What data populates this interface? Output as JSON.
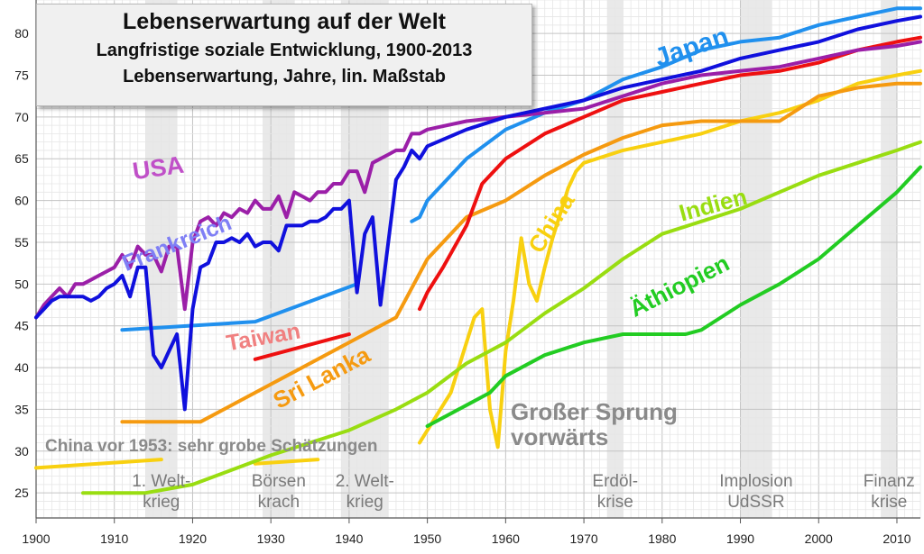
{
  "chart_data": {
    "type": "line",
    "title": "Lebenserwartung auf der Welt",
    "subtitle": "Langfristige soziale Entwicklung, 1900-2013",
    "subtitle2": "Lebenserwartung, Jahre, lin. Maßstab",
    "xlim": [
      1900,
      2013
    ],
    "ylim": [
      22,
      84
    ],
    "x_ticks": [
      1900,
      1910,
      1920,
      1930,
      1940,
      1950,
      1960,
      1970,
      1980,
      1990,
      2000,
      2010
    ],
    "x_tick_labels": [
      "1900",
      "1910",
      "1920",
      "1930",
      "1940",
      "1950",
      "1960",
      "1970",
      "1980",
      "1990",
      "2000",
      "2010"
    ],
    "y_ticks": [
      25,
      30,
      35,
      40,
      45,
      50,
      55,
      60,
      65,
      70,
      75,
      80
    ],
    "y_tick_labels": [
      "25",
      "30",
      "35",
      "40",
      "45",
      "50",
      "55",
      "60",
      "65",
      "70",
      "75",
      "80"
    ],
    "grid": true,
    "colors": {
      "usa": "#9b1fa8",
      "frankreich": "#1010dd",
      "japan": "#2090ee",
      "taiwan": "#ee1010",
      "srilanka": "#f59a10",
      "china": "#f8d010",
      "indien": "#99dd11",
      "aethiopien": "#22cc22",
      "grid": "#d8d8d8",
      "crisis": "#e3e3e3"
    },
    "crisis_bands": [
      {
        "from": 1914,
        "to": 1918,
        "label": [
          "1. Welt-",
          "krieg"
        ]
      },
      {
        "from": 1929,
        "to": 1933,
        "label": [
          "Börsen",
          "krach"
        ]
      },
      {
        "from": 1939,
        "to": 1945,
        "label": [
          "2. Welt-",
          "krieg"
        ]
      },
      {
        "from": 1973,
        "to": 1975,
        "label": [
          "Erdöl-",
          "krise"
        ]
      },
      {
        "from": 1990,
        "to": 1994,
        "label": [
          "Implosion",
          "UdSSR"
        ]
      },
      {
        "from": 2008,
        "to": 2010,
        "label": [
          "Finanz",
          "krise"
        ]
      }
    ],
    "annotations": {
      "china_pre1953": "China vor 1953: sehr grobe Schätzungen",
      "sprung": [
        "Großer Sprung",
        "vorwärts"
      ]
    },
    "series": [
      {
        "name": "USA",
        "labelColor": "#c050c8",
        "key": "usa",
        "x": [
          1900,
          1901,
          1902,
          1903,
          1904,
          1905,
          1906,
          1907,
          1908,
          1909,
          1910,
          1911,
          1912,
          1913,
          1914,
          1915,
          1916,
          1917,
          1918,
          1919,
          1920,
          1921,
          1922,
          1923,
          1924,
          1925,
          1926,
          1927,
          1928,
          1929,
          1930,
          1931,
          1932,
          1933,
          1934,
          1935,
          1936,
          1937,
          1938,
          1939,
          1940,
          1941,
          1942,
          1943,
          1944,
          1945,
          1946,
          1947,
          1948,
          1949,
          1950,
          1955,
          1960,
          1965,
          1970,
          1975,
          1980,
          1985,
          1990,
          1995,
          2000,
          2005,
          2010,
          2013
        ],
        "y": [
          46,
          47.5,
          48.5,
          49.5,
          48.5,
          50,
          50,
          50.5,
          51,
          51.5,
          52,
          53.5,
          52,
          54.5,
          53.5,
          53.5,
          51.5,
          54.5,
          54.5,
          47,
          55,
          57.5,
          58,
          57,
          58.5,
          58,
          59,
          58.5,
          60,
          59,
          59,
          60.5,
          58,
          61,
          60.5,
          60,
          61,
          61,
          62,
          62,
          63.5,
          63.5,
          61,
          64.5,
          65,
          65.5,
          66,
          66,
          68,
          68,
          68.5,
          69.5,
          70,
          70.5,
          71,
          72.5,
          74,
          75,
          75.5,
          76,
          77,
          78,
          78.5,
          79
        ]
      },
      {
        "name": "Frankreich",
        "labelColor": "#7f7ff5",
        "key": "frankreich",
        "x": [
          1900,
          1901,
          1902,
          1903,
          1904,
          1905,
          1906,
          1907,
          1908,
          1909,
          1910,
          1911,
          1912,
          1913,
          1914,
          1915,
          1916,
          1917,
          1918,
          1919,
          1920,
          1921,
          1922,
          1923,
          1924,
          1925,
          1926,
          1927,
          1928,
          1929,
          1930,
          1931,
          1932,
          1933,
          1934,
          1935,
          1936,
          1937,
          1938,
          1939,
          1940,
          1941,
          1942,
          1943,
          1944,
          1945,
          1946,
          1947,
          1948,
          1949,
          1950,
          1955,
          1960,
          1965,
          1970,
          1975,
          1980,
          1985,
          1990,
          1995,
          2000,
          2005,
          2010,
          2013
        ],
        "y": [
          46,
          47,
          48,
          48.5,
          48.5,
          48.5,
          48.5,
          48,
          48.5,
          49.5,
          50,
          51,
          48.5,
          52,
          52,
          41.5,
          40,
          42,
          44,
          35,
          47,
          52,
          52.5,
          55,
          55,
          55.5,
          55,
          56,
          54.5,
          55,
          55,
          54,
          57,
          57,
          57,
          57.5,
          57.5,
          58,
          59,
          59,
          60,
          49,
          56,
          58,
          47.5,
          55,
          62.5,
          64,
          66,
          65,
          66.5,
          68.5,
          70,
          71,
          72,
          73.5,
          74.5,
          75.5,
          77,
          78,
          79,
          80.5,
          81.5,
          82
        ]
      },
      {
        "name": "Japan",
        "labelColor": "#2090ee",
        "key": "japan",
        "x": [
          1911,
          1928,
          1941,
          null,
          1948,
          1949,
          1950,
          1951,
          1952,
          1955,
          1960,
          1965,
          1970,
          1975,
          1980,
          1985,
          1990,
          1995,
          2000,
          2005,
          2010,
          2013
        ],
        "y": [
          44.5,
          45.5,
          50,
          null,
          57.5,
          58,
          60,
          61,
          62,
          65,
          68.5,
          70.5,
          72,
          74.5,
          76,
          78,
          79,
          79.5,
          81,
          82,
          83,
          83
        ]
      },
      {
        "name": "Taiwan",
        "labelColor": "#f08080",
        "key": "taiwan",
        "x": [
          1928,
          1940,
          null,
          1949,
          1950,
          1952,
          1955,
          1957,
          1960,
          1965,
          1970,
          1975,
          1980,
          1985,
          1990,
          1995,
          2000,
          2005,
          2010,
          2013
        ],
        "y": [
          41,
          44,
          null,
          47,
          49,
          52,
          57,
          62,
          65,
          68,
          70,
          72,
          73,
          74,
          75,
          75.5,
          76.5,
          78,
          79,
          79.5
        ]
      },
      {
        "name": "Sri Lanka",
        "labelColor": "#f59a10",
        "key": "srilanka",
        "x": [
          1911,
          1921,
          1946,
          1950,
          1955,
          1960,
          1965,
          1970,
          1975,
          1980,
          1985,
          1990,
          1995,
          2000,
          2005,
          2010,
          2013
        ],
        "y": [
          33.5,
          33.5,
          46,
          53,
          58,
          60,
          63,
          65.5,
          67.5,
          69,
          69.5,
          69.5,
          69.5,
          72.5,
          73.5,
          74,
          74
        ]
      },
      {
        "name": "China",
        "labelColor": "#f8d010",
        "key": "china",
        "x": [
          1900,
          1916,
          null,
          1928,
          1936,
          null,
          1949,
          1953,
          1955,
          1956,
          1957,
          1958,
          1959,
          1960,
          1961,
          1962,
          1963,
          1964,
          1965,
          1966,
          1967,
          1968,
          1969,
          1970,
          1975,
          1980,
          1985,
          1990,
          1995,
          2000,
          2005,
          2010,
          2013
        ],
        "y": [
          28,
          29,
          null,
          28.5,
          29,
          null,
          31,
          37,
          43,
          46,
          47,
          35,
          30.5,
          42,
          48,
          55.5,
          50,
          48,
          52,
          55.5,
          58.5,
          61.5,
          63.5,
          64.5,
          66,
          67,
          68,
          69.5,
          70.5,
          72,
          74,
          75,
          75.5
        ]
      },
      {
        "name": "Indien",
        "labelColor": "#99dd11",
        "key": "indien",
        "x": [
          1906,
          1914,
          1920,
          1930,
          1940,
          1946,
          1950,
          1955,
          1960,
          1965,
          1970,
          1975,
          1980,
          1985,
          1990,
          1995,
          2000,
          2005,
          2010,
          2013
        ],
        "y": [
          25,
          25,
          26,
          29.5,
          32.5,
          35,
          37,
          40.5,
          43,
          46.5,
          49.5,
          53,
          56,
          57.5,
          59,
          61,
          63,
          64.5,
          66,
          67
        ]
      },
      {
        "name": "Äthiopien",
        "labelColor": "#22cc22",
        "key": "aethiopien",
        "x": [
          1950,
          1955,
          1958,
          1960,
          1965,
          1970,
          1975,
          1980,
          1983,
          1985,
          1990,
          1995,
          2000,
          2005,
          2010,
          2013
        ],
        "y": [
          33,
          35.5,
          37,
          39,
          41.5,
          43,
          44,
          44,
          44,
          44.5,
          47.5,
          50,
          53,
          57,
          61,
          64
        ]
      }
    ],
    "series_labels": [
      {
        "key": "usa",
        "text": "USA",
        "x": 1912.5,
        "y": 62.5,
        "rotate": -8,
        "size": 27
      },
      {
        "key": "frankreich",
        "text": "Frankreich",
        "x": 1911.5,
        "y": 51.5,
        "rotate": -22,
        "size": 25
      },
      {
        "key": "japan",
        "text": "Japan",
        "x": 1979.5,
        "y": 76,
        "rotate": -18,
        "size": 29
      },
      {
        "key": "taiwan",
        "text": "Taiwan",
        "x": 1924.5,
        "y": 42,
        "rotate": -10,
        "size": 25
      },
      {
        "key": "srilanka",
        "text": "Sri Lanka",
        "x": 1931,
        "y": 35,
        "rotate": -28,
        "size": 26
      },
      {
        "key": "china",
        "text": "China",
        "x": 1964.5,
        "y": 53.5,
        "rotate": -58,
        "size": 26
      },
      {
        "key": "indien",
        "text": "Indien",
        "x": 1982.5,
        "y": 57.5,
        "rotate": -15,
        "size": 26
      },
      {
        "key": "aethiopien",
        "text": "Äthiopien",
        "x": 1976.5,
        "y": 46,
        "rotate": -27,
        "size": 26
      }
    ]
  }
}
